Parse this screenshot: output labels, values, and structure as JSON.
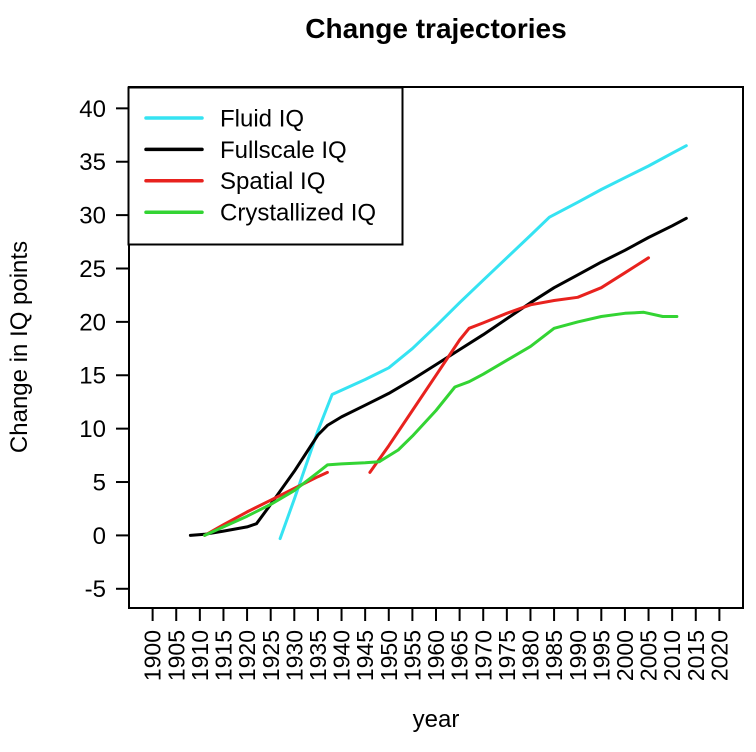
{
  "window": {
    "background": "#FFFFFF",
    "text_color": "#000000"
  },
  "chart_data": {
    "type": "line",
    "title": "Change trajectories",
    "xlabel": "year",
    "ylabel": "Change in IQ points",
    "xlim": [
      1895,
      2025
    ],
    "ylim": [
      -6.8,
      42
    ],
    "xticks": [
      1900,
      1905,
      1910,
      1915,
      1920,
      1925,
      1930,
      1935,
      1940,
      1945,
      1950,
      1955,
      1960,
      1965,
      1970,
      1975,
      1980,
      1985,
      1990,
      1995,
      2000,
      2005,
      2010,
      2015,
      2020
    ],
    "yticks": [
      -5,
      0,
      5,
      10,
      15,
      20,
      25,
      30,
      35,
      40
    ],
    "x_tick_label_orientation": "vertical",
    "grid": false,
    "legend_position": "top-left",
    "series": [
      {
        "name": "Fluid IQ",
        "color": "#35E3F2",
        "segments": [
          [
            [
              1927,
              -0.3
            ],
            [
              1930,
              3.4
            ],
            [
              1935,
              9.8
            ],
            [
              1938,
              13.2
            ],
            [
              1940,
              13.6
            ],
            [
              1945,
              14.6
            ],
            [
              1950,
              15.7
            ],
            [
              1955,
              17.5
            ],
            [
              1960,
              19.6
            ],
            [
              1965,
              21.8
            ],
            [
              1970,
              23.9
            ],
            [
              1975,
              26.0
            ],
            [
              1980,
              28.1
            ],
            [
              1984,
              29.8
            ],
            [
              1990,
              31.2
            ],
            [
              1995,
              32.4
            ],
            [
              2000,
              33.5
            ],
            [
              2005,
              34.6
            ],
            [
              2010,
              35.8
            ],
            [
              2013,
              36.5
            ]
          ]
        ]
      },
      {
        "name": "Fullscale IQ",
        "color": "#000000",
        "segments": [
          [
            [
              1908,
              0.0
            ],
            [
              1911,
              0.1
            ],
            [
              1915,
              0.4
            ],
            [
              1920,
              0.8
            ],
            [
              1922,
              1.1
            ],
            [
              1925,
              2.9
            ],
            [
              1930,
              6.0
            ],
            [
              1935,
              9.4
            ],
            [
              1937,
              10.3
            ],
            [
              1940,
              11.1
            ],
            [
              1945,
              12.2
            ],
            [
              1950,
              13.3
            ],
            [
              1955,
              14.6
            ],
            [
              1960,
              16.0
            ],
            [
              1965,
              17.4
            ],
            [
              1970,
              18.8
            ],
            [
              1975,
              20.3
            ],
            [
              1980,
              21.8
            ],
            [
              1985,
              23.2
            ],
            [
              1990,
              24.4
            ],
            [
              1995,
              25.6
            ],
            [
              2000,
              26.7
            ],
            [
              2005,
              27.9
            ],
            [
              2010,
              29.0
            ],
            [
              2013,
              29.7
            ]
          ]
        ]
      },
      {
        "name": "Spatial IQ",
        "color": "#E8221E",
        "segments": [
          [
            [
              1911,
              0.0
            ],
            [
              1915,
              1.0
            ],
            [
              1920,
              2.2
            ],
            [
              1925,
              3.3
            ],
            [
              1930,
              4.4
            ],
            [
              1935,
              5.5
            ],
            [
              1937,
              5.9
            ]
          ],
          [
            [
              1946,
              5.9
            ],
            [
              1950,
              8.4
            ],
            [
              1955,
              11.7
            ],
            [
              1960,
              15.0
            ],
            [
              1965,
              18.3
            ],
            [
              1967,
              19.4
            ],
            [
              1970,
              19.9
            ],
            [
              1975,
              20.8
            ],
            [
              1980,
              21.6
            ],
            [
              1985,
              22.0
            ],
            [
              1990,
              22.3
            ],
            [
              1995,
              23.2
            ],
            [
              2000,
              24.6
            ],
            [
              2005,
              26.0
            ]
          ]
        ]
      },
      {
        "name": "Crystallized IQ",
        "color": "#33D433",
        "segments": [
          [
            [
              1911,
              0.0
            ],
            [
              1915,
              0.8
            ],
            [
              1920,
              1.8
            ],
            [
              1925,
              2.9
            ],
            [
              1930,
              4.2
            ],
            [
              1935,
              5.9
            ],
            [
              1937,
              6.6
            ],
            [
              1940,
              6.7
            ],
            [
              1945,
              6.8
            ],
            [
              1948,
              6.9
            ],
            [
              1952,
              8.0
            ],
            [
              1955,
              9.3
            ],
            [
              1960,
              11.7
            ],
            [
              1964,
              13.9
            ],
            [
              1967,
              14.4
            ],
            [
              1970,
              15.1
            ],
            [
              1975,
              16.4
            ],
            [
              1980,
              17.7
            ],
            [
              1985,
              19.4
            ],
            [
              1990,
              20.0
            ],
            [
              1995,
              20.5
            ],
            [
              2000,
              20.8
            ],
            [
              2004,
              20.9
            ],
            [
              2008,
              20.5
            ],
            [
              2011,
              20.5
            ]
          ]
        ]
      }
    ]
  }
}
